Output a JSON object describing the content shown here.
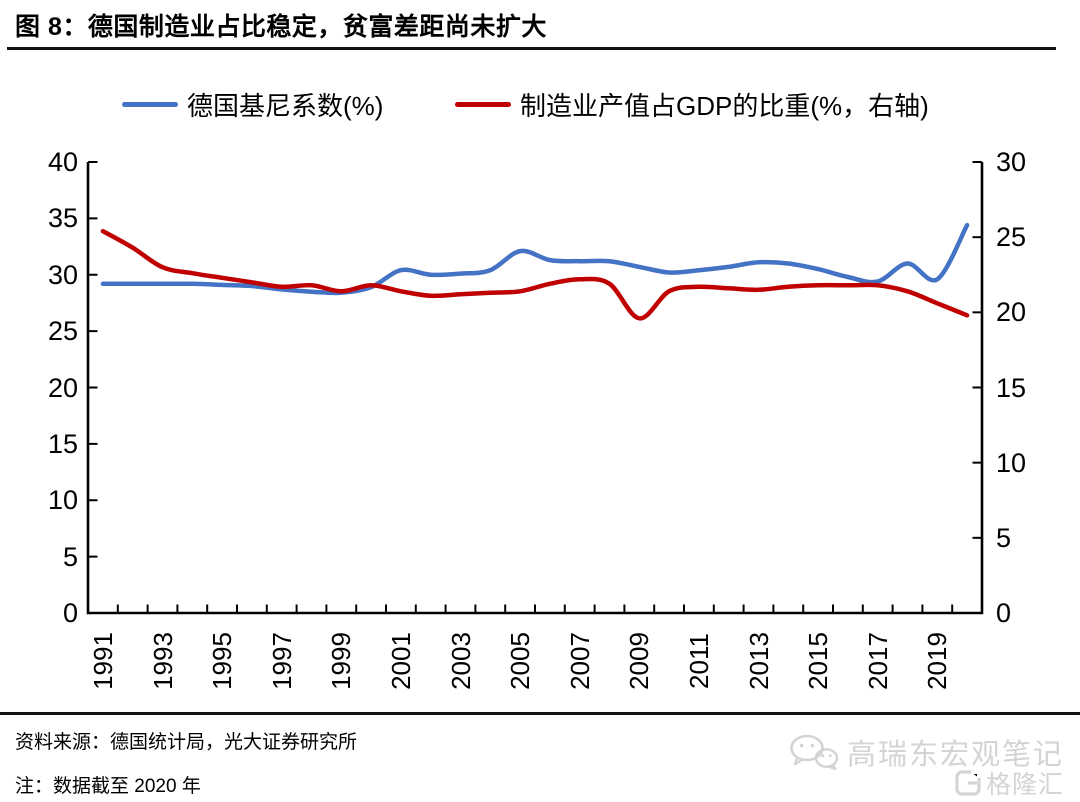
{
  "title": "图 8：德国制造业占比稳定，贫富差距尚未扩大",
  "legend": [
    {
      "label": "德国基尼系数(%)",
      "color": "#4472C4"
    },
    {
      "label": "制造业产值占GDP的比重(%，右轴)",
      "color": "#C00000"
    }
  ],
  "chart_data": {
    "type": "line",
    "title": "图 8：德国制造业占比稳定，贫富差距尚未扩大",
    "x": [
      1991,
      1992,
      1993,
      1994,
      1995,
      1996,
      1997,
      1998,
      1999,
      2000,
      2001,
      2002,
      2003,
      2004,
      2005,
      2006,
      2007,
      2008,
      2009,
      2010,
      2011,
      2012,
      2013,
      2014,
      2015,
      2016,
      2017,
      2018,
      2019,
      2020
    ],
    "series": [
      {
        "name": "德国基尼系数(%)",
        "axis": "left",
        "color": "#4472C4",
        "values": [
          29.2,
          29.2,
          29.2,
          29.2,
          29.1,
          29.0,
          28.7,
          28.5,
          28.4,
          28.9,
          30.4,
          30.0,
          30.1,
          30.4,
          32.1,
          31.3,
          31.2,
          31.2,
          30.7,
          30.2,
          30.4,
          30.7,
          31.1,
          31.0,
          30.5,
          29.8,
          29.4,
          31.0,
          29.6,
          34.4
        ]
      },
      {
        "name": "制造业产值占GDP的比重(%，右轴)",
        "axis": "right",
        "color": "#C00000",
        "values": [
          25.4,
          24.3,
          23.0,
          22.6,
          22.3,
          22.0,
          21.7,
          21.8,
          21.4,
          21.8,
          21.4,
          21.1,
          21.2,
          21.3,
          21.4,
          21.9,
          22.2,
          21.9,
          19.6,
          21.4,
          21.7,
          21.6,
          21.5,
          21.7,
          21.8,
          21.8,
          21.8,
          21.4,
          20.6,
          19.8
        ]
      }
    ],
    "left_axis": {
      "min": 0,
      "max": 40,
      "ticks": [
        0,
        5,
        10,
        15,
        20,
        25,
        30,
        35,
        40
      ]
    },
    "right_axis": {
      "min": 0,
      "max": 30,
      "ticks": [
        0,
        5,
        10,
        15,
        20,
        25,
        30
      ]
    },
    "x_tick_labels": [
      "1991",
      "1993",
      "1995",
      "1997",
      "1999",
      "2001",
      "2003",
      "2005",
      "2007",
      "2009",
      "2011",
      "2013",
      "2015",
      "2017",
      "2019"
    ],
    "grid": false,
    "legend_position": "top",
    "smooth": true
  },
  "footer": {
    "source": "资料来源：德国统计局，光大证券研究所",
    "note": "注：数据截至 2020 年"
  },
  "watermark": {
    "line1": "高瑞东宏观笔记",
    "line2": "格隆汇"
  },
  "colors": {
    "series_blue": "#4472C4",
    "series_red": "#C00000",
    "axis": "#000000",
    "rule": "#111111",
    "watermark": "#d4d4d4"
  }
}
